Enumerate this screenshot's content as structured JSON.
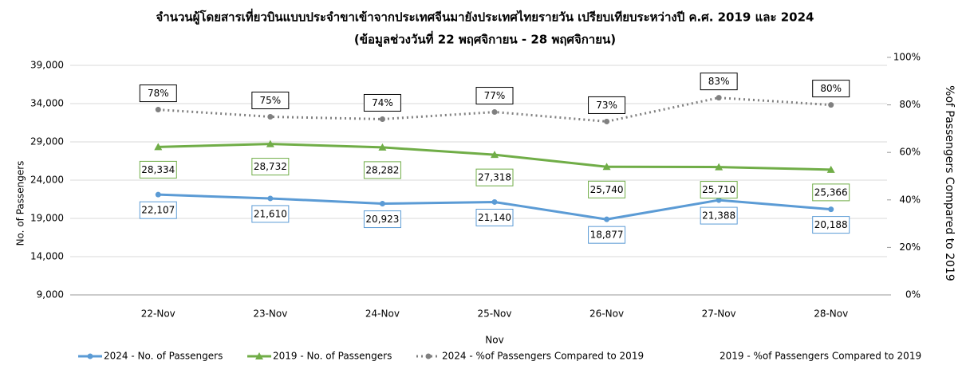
{
  "chart_data": {
    "type": "line",
    "title": "จำนวนผู้โดยสารเที่ยวบินแบบประจำขาเข้าจากประเทศจีนมายังประเทศไทยรายวัน เปรียบเทียบระหว่างปี ค.ศ. 2019 และ 2024",
    "subtitle": "(ข้อมูลช่วงวันที่ 22 พฤศจิกายน - 28 พฤศจิกายน)",
    "x_label": "Nov",
    "y_label": "No. of Passengers",
    "y2_label": "%of Passengers Compared to 2019",
    "categories": [
      "22-Nov",
      "23-Nov",
      "24-Nov",
      "25-Nov",
      "26-Nov",
      "27-Nov",
      "28-Nov"
    ],
    "ylim": [
      9000,
      39000
    ],
    "yticks": [
      {
        "value": 9000,
        "label": "9,000"
      },
      {
        "value": 14000,
        "label": "14,000"
      },
      {
        "value": 19000,
        "label": "19,000"
      },
      {
        "value": 24000,
        "label": "24,000"
      },
      {
        "value": 29000,
        "label": "29,000"
      },
      {
        "value": 34000,
        "label": "34,000"
      },
      {
        "value": 39000,
        "label": "39,000"
      }
    ],
    "y2lim": [
      0,
      100
    ],
    "y2ticks": [
      {
        "value": 0,
        "label": "0%"
      },
      {
        "value": 20,
        "label": "20%"
      },
      {
        "value": 40,
        "label": "40%"
      },
      {
        "value": 60,
        "label": "60%"
      },
      {
        "value": 80,
        "label": "80%"
      },
      {
        "value": 100,
        "label": "100%"
      }
    ],
    "grid": true,
    "legend": "bottom",
    "series": [
      {
        "name": "2024 - No. of Passengers",
        "color": "#5b9bd5",
        "marker": "circle",
        "values": [
          22107,
          21610,
          20923,
          21140,
          18877,
          21388,
          20188
        ],
        "value_labels": [
          "22,107",
          "21,610",
          "20,923",
          "21,140",
          "18,877",
          "21,388",
          "20,188"
        ]
      },
      {
        "name": "2019 - No. of Passengers",
        "color": "#70ad47",
        "marker": "triangle",
        "values": [
          28334,
          28732,
          28282,
          27318,
          25740,
          25710,
          25366
        ],
        "value_labels": [
          "28,334",
          "28,732",
          "28,282",
          "27,318",
          "25,740",
          "25,710",
          "25,366"
        ]
      },
      {
        "name": "2024 - %of Passengers Compared to 2019",
        "color": "#808080",
        "marker": "circle",
        "dash": true,
        "axis": "y2",
        "values": [
          78,
          75,
          74,
          77,
          73,
          83,
          80
        ],
        "value_labels": [
          "78%",
          "75%",
          "74%",
          "77%",
          "73%",
          "83%",
          "80%"
        ]
      },
      {
        "name": "2019 - %of Passengers Compared to 2019",
        "axis": "y2",
        "values": [
          null,
          null,
          null,
          null,
          null,
          null,
          null
        ]
      }
    ]
  }
}
